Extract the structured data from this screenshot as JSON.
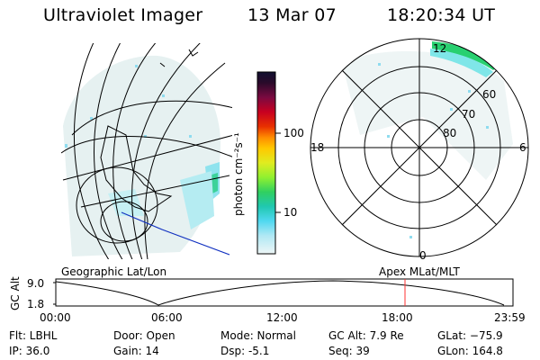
{
  "header": {
    "instrument": "Ultraviolet Imager",
    "date": "13 Mar 07",
    "time": "18:20:34 UT"
  },
  "colorbar": {
    "unit_label": "photon cm⁻²s⁻¹",
    "ticks": [
      "100",
      "10"
    ],
    "colors": [
      "#101030",
      "#2a0a2a",
      "#6a0a3a",
      "#a00020",
      "#d00000",
      "#e83000",
      "#ff8c00",
      "#ffc000",
      "#e8e820",
      "#b0f020",
      "#60e040",
      "#20d060",
      "#20c0a0",
      "#30c8e0",
      "#70e0f0",
      "#c0ecf4",
      "#e8f4f4"
    ]
  },
  "polar_plot": {
    "mlt_labels": [
      "12",
      "18",
      "6",
      "0"
    ],
    "lat_labels": [
      "60",
      "70",
      "80"
    ]
  },
  "altitude_plot": {
    "y_axis_label": "GC Alt",
    "y_ticks": [
      "9.0",
      "1.8"
    ],
    "left_caption": "Geographic Lat/Lon",
    "right_caption": "Apex MLat/MLT",
    "x_ticks": [
      "00:00",
      "06:00",
      "12:00",
      "18:00",
      "23:59"
    ]
  },
  "info": {
    "filter": "Flt: LBHL",
    "ip": "IP: 36.0",
    "door": "Door: Open",
    "gain": "Gain: 14",
    "mode": "Mode: Normal",
    "dsp": "Dsp:    -5.1",
    "gc_alt": "GC Alt: 7.9 Re",
    "seq": "Seq: 39",
    "glat": "GLat: −75.9",
    "glon": "GLon: 164.8"
  },
  "colors": {
    "trajectory": "#000000",
    "current_time_marker": "#ff3030",
    "coast_line_blue": "#1030c0"
  }
}
